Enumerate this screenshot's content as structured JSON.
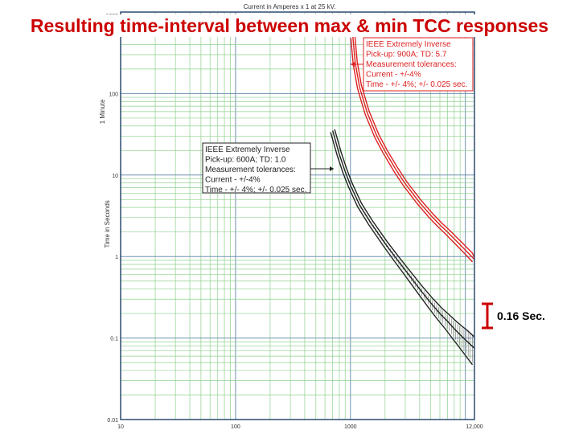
{
  "slide_title": "Resulting time-interval between max & min TCC responses",
  "chart_data": {
    "type": "line",
    "x_scale": "log",
    "y_scale": "log",
    "xlabel": "Current in Amperes x 1 at 25 kV.",
    "ylabel": "Time in Seconds",
    "y_side_label": "1 Minute",
    "x_ticks": [
      "10",
      "100",
      "1000",
      "12,000"
    ],
    "x_tick_values": [
      10,
      100,
      1000,
      12000
    ],
    "y_ticks": [
      "0.01",
      "0.1",
      "1",
      "10",
      "100",
      "1000"
    ],
    "y_tick_values": [
      0.01,
      0.1,
      1,
      10,
      100,
      1000
    ],
    "xlim": [
      10,
      12000
    ],
    "ylim": [
      0.01,
      1000
    ],
    "grid": true,
    "series": [
      {
        "color": "#dd2222",
        "pickup": 900,
        "time_dial": 5.7,
        "points": [
          [
            1050,
            500
          ],
          [
            1100,
            240
          ],
          [
            1200,
            120
          ],
          [
            1400,
            58
          ],
          [
            1700,
            30
          ],
          [
            2000,
            19.5
          ],
          [
            2500,
            11.5
          ],
          [
            3000,
            7.8
          ],
          [
            4000,
            4.6
          ],
          [
            5000,
            3.2
          ],
          [
            6000,
            2.45
          ],
          [
            7000,
            2.0
          ],
          [
            8000,
            1.65
          ],
          [
            9000,
            1.4
          ],
          [
            10000,
            1.2
          ],
          [
            11000,
            1.05
          ],
          [
            12000,
            0.92
          ]
        ]
      },
      {
        "color": "#222222",
        "pickup": 600,
        "time_dial": 1.0,
        "points": [
          [
            700,
            35
          ],
          [
            800,
            18
          ],
          [
            900,
            11
          ],
          [
            1000,
            7.5
          ],
          [
            1200,
            4.3
          ],
          [
            1500,
            2.6
          ],
          [
            2000,
            1.45
          ],
          [
            2500,
            0.95
          ],
          [
            3000,
            0.68
          ],
          [
            4000,
            0.4
          ],
          [
            5000,
            0.27
          ],
          [
            6000,
            0.2
          ],
          [
            7000,
            0.16
          ],
          [
            8000,
            0.13
          ],
          [
            9000,
            0.11
          ],
          [
            10000,
            0.095
          ],
          [
            12000,
            0.075
          ]
        ]
      }
    ],
    "legend_boxes": [
      {
        "color": "#dd2222",
        "position": "top-right",
        "lines": [
          "IEEE Extremely Inverse",
          "Pick-up: 900A; TD: 5.7",
          "Measurement tolerances:",
          "Current - +/-4%",
          "Time - +/- 4%; +/- 0.025 sec."
        ]
      },
      {
        "color": "#222222",
        "position": "center-left",
        "lines": [
          "IEEE Extremely Inverse",
          "Pick-up: 600A; TD: 1.0",
          "Measurement tolerances:",
          "Current - +/-4%",
          "Time - +/- 4%; +/- 0.025 sec."
        ]
      }
    ],
    "annotation": {
      "text": "0.16 Sec.",
      "value_seconds": 0.16,
      "color": "#cc0000"
    }
  }
}
